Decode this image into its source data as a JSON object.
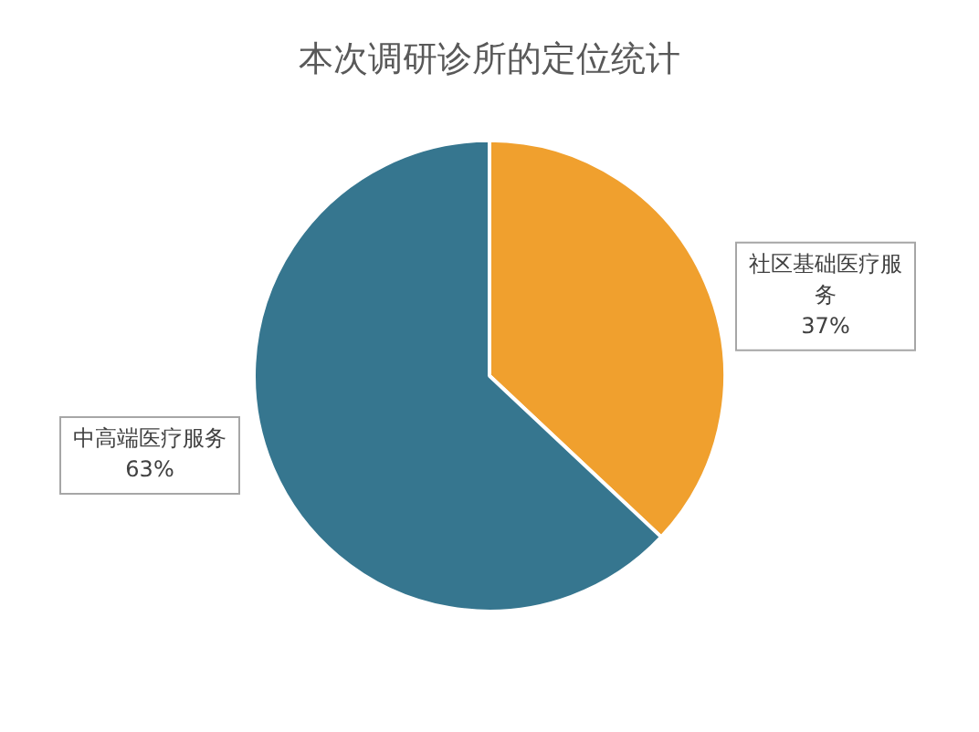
{
  "chart_data": {
    "type": "pie",
    "title": "本次调研诊所的定位统计",
    "categories": [
      "社区基础医疗服务",
      "中高端医疗服务"
    ],
    "values": [
      37,
      63
    ],
    "colors": [
      "#f0a02e",
      "#36768f"
    ],
    "value_labels": [
      "37%",
      "63%"
    ],
    "legend": false
  }
}
